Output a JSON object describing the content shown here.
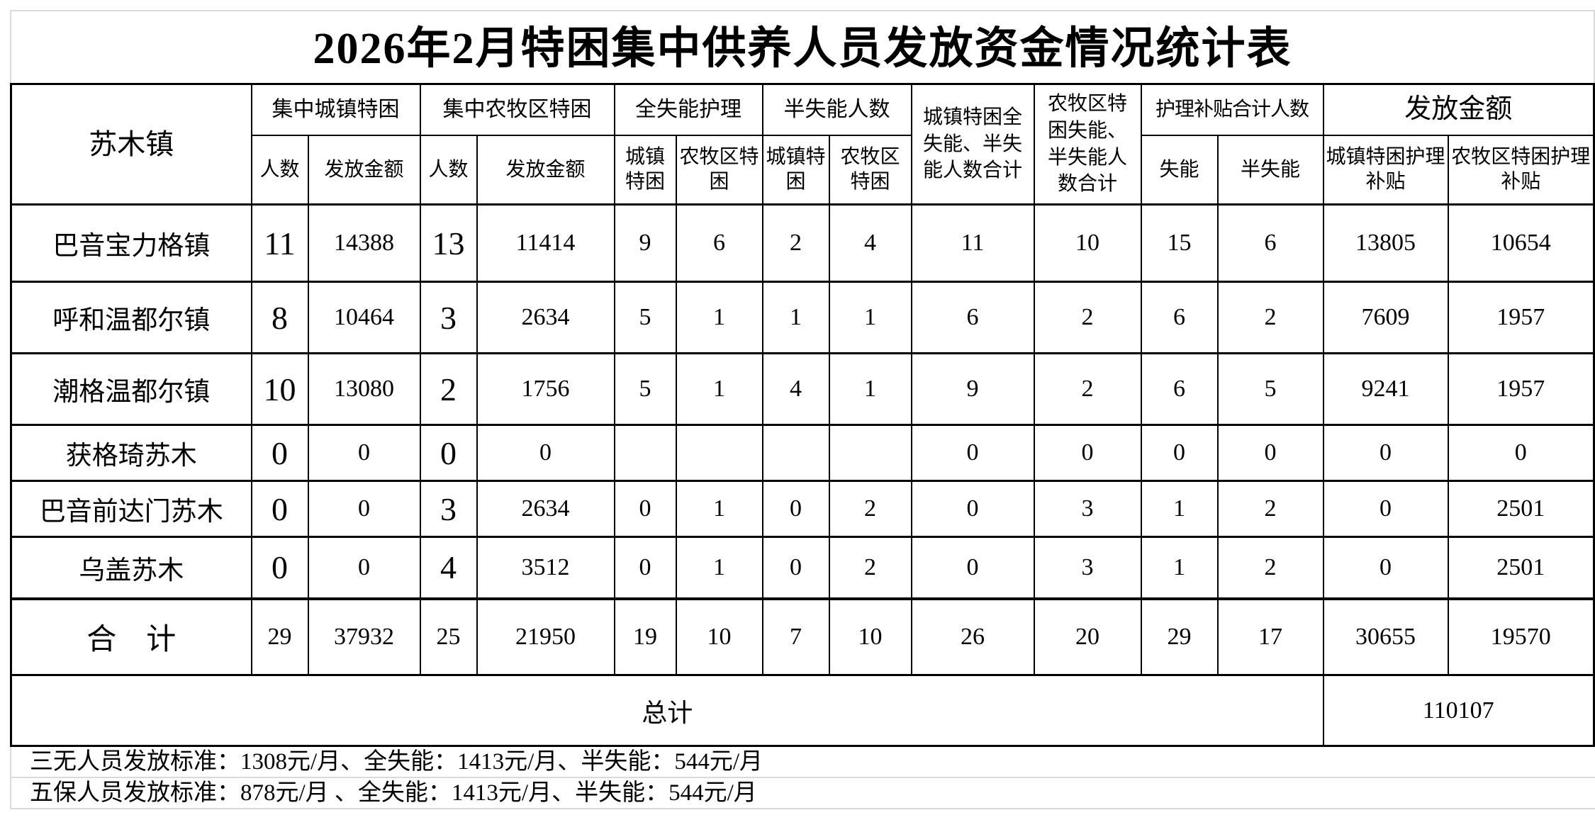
{
  "title": "2026年2月特困集中供养人员发放资金情况统计表",
  "table": {
    "header": {
      "col_town": "苏木镇",
      "groups": [
        {
          "label": "集中城镇特困",
          "children": [
            "人数",
            "发放金额"
          ]
        },
        {
          "label": "集中农牧区特困",
          "children": [
            "人数",
            "发放金额"
          ]
        },
        {
          "label": "全失能护理",
          "children": [
            "城镇特困",
            "农牧区特困"
          ]
        },
        {
          "label": "半失能人数",
          "children": [
            "城镇特困",
            "农牧区特困"
          ]
        },
        {
          "label": "城镇特困全失能、半失能人数合计"
        },
        {
          "label": "农牧区特困失能、半失能人数合计"
        },
        {
          "label": "护理补贴合计人数",
          "children": [
            "失能",
            "半失能"
          ]
        },
        {
          "label": "发放金额",
          "children": [
            "城镇特困护理补贴",
            "农牧区特困护理补贴"
          ]
        }
      ]
    },
    "rows": [
      {
        "name": "巴音宝力格镇",
        "values": [
          "11",
          "14388",
          "13",
          "11414",
          "9",
          "6",
          "2",
          "4",
          "11",
          "10",
          "15",
          "6",
          "13805",
          "10654"
        ]
      },
      {
        "name": "呼和温都尔镇",
        "values": [
          "8",
          "10464",
          "3",
          "2634",
          "5",
          "1",
          "1",
          "1",
          "6",
          "2",
          "6",
          "2",
          "7609",
          "1957"
        ]
      },
      {
        "name": "潮格温都尔镇",
        "values": [
          "10",
          "13080",
          "2",
          "1756",
          "5",
          "1",
          "4",
          "1",
          "9",
          "2",
          "6",
          "5",
          "9241",
          "1957"
        ]
      },
      {
        "name": "获格琦苏木",
        "values": [
          "0",
          "0",
          "0",
          "0",
          "",
          "",
          "",
          "",
          "0",
          "0",
          "0",
          "0",
          "0",
          "0"
        ]
      },
      {
        "name": "巴音前达门苏木",
        "values": [
          "0",
          "0",
          "3",
          "2634",
          "0",
          "1",
          "0",
          "2",
          "0",
          "3",
          "1",
          "2",
          "0",
          "2501"
        ]
      },
      {
        "name": "乌盖苏木",
        "values": [
          "0",
          "0",
          "4",
          "3512",
          "0",
          "1",
          "0",
          "2",
          "0",
          "3",
          "1",
          "2",
          "0",
          "2501"
        ]
      }
    ],
    "total_row": {
      "name": "合　计",
      "values": [
        "29",
        "37932",
        "25",
        "21950",
        "19",
        "10",
        "7",
        "10",
        "26",
        "20",
        "29",
        "17",
        "30655",
        "19570"
      ]
    },
    "grand_total": {
      "label": "总计",
      "value": "110107"
    }
  },
  "footnotes": [
    "三无人员发放标准：1308元/月、全失能：1413元/月、半失能：544元/月",
    "五保人员发放标准：878元/月 、全失能：1413元/月、半失能：544元/月"
  ]
}
